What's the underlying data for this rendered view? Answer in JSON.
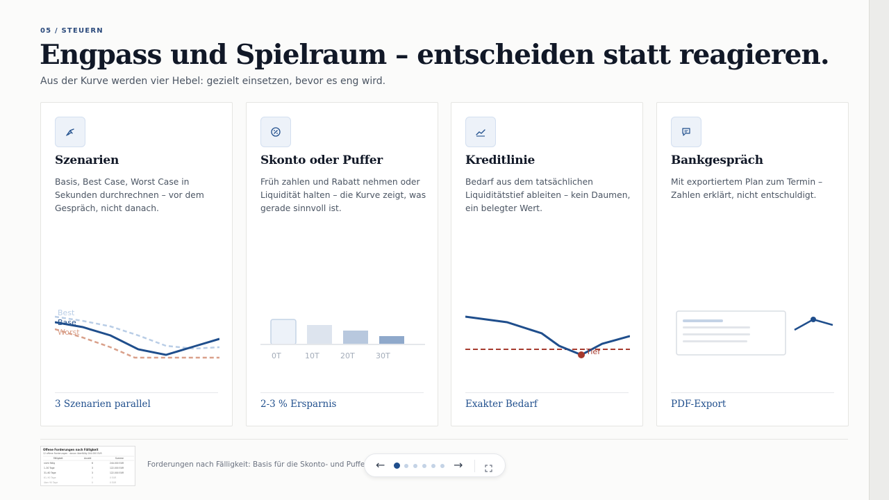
{
  "header": {
    "eyebrow": "05 / STEUERN",
    "title": "Engpass und Spielraum – entscheiden statt reagieren.",
    "subtitle": "Aus der Kurve werden vier Hebel: gezielt einsetzen, bevor es eng wird."
  },
  "cards": [
    {
      "icon": "trend-arrow-icon",
      "title": "Szenarien",
      "text": "Basis, Best Case, Worst Case in Sekunden durchrechnen – vor dem Gespräch, nicht danach.",
      "metric": "3 Szenarien parallel",
      "viz_labels": {
        "best": "Best",
        "base": "Base",
        "worst": "Worst"
      }
    },
    {
      "icon": "percent-icon",
      "title": "Skonto oder Puffer",
      "text": "Früh zahlen und Rabatt nehmen oder Liquidität halten – die Kurve zeigt, was gerade sinnvoll ist.",
      "metric": "2-3 % Ersparnis",
      "viz_labels": [
        "0T",
        "10T",
        "20T",
        "30T"
      ]
    },
    {
      "icon": "line-chart-icon",
      "title": "Kreditlinie",
      "text": "Bedarf aus dem tatsächlichen Liquiditätstief ableiten – kein Daumen, ein belegter Wert.",
      "metric": "Exakter Bedarf",
      "viz_labels": {
        "low": "Tief"
      }
    },
    {
      "icon": "chat-icon",
      "title": "Bankgespräch",
      "text": "Mit exportiertem Plan zum Termin – Zahlen erklärt, nicht entschuldigt.",
      "metric": "PDF-Export"
    }
  ],
  "footer": {
    "caption": "Forderungen nach Fälligkeit: Basis für die Skonto- und Puffer-Entscheidung",
    "thumbnail": {
      "title": "Offene Forderungen nach Fälligkeit",
      "subtitle": "12 offene Forderungen · davon überfällig 244.000 EUR",
      "headers": [
        "Fälligkeit",
        "Anzahl",
        "Summe"
      ],
      "rows": [
        [
          "nicht fällig",
          "6",
          "244.000 EUR"
        ],
        [
          "1–30 Tage",
          "3",
          "122.000 EUR"
        ],
        [
          "31–60 Tage",
          "3",
          "122.000 EUR"
        ],
        [
          "61–90 Tage",
          "0",
          "0 EUR"
        ],
        [
          "über 90 Tage",
          "0",
          "0 EUR"
        ]
      ]
    },
    "pager": {
      "prev": "←",
      "next": "→",
      "total": 6,
      "active": 0
    }
  },
  "colors": {
    "accent": "#1f4e8c",
    "worst": "#d9a08a",
    "best": "#b9cde6",
    "low": "#a63a2e"
  }
}
